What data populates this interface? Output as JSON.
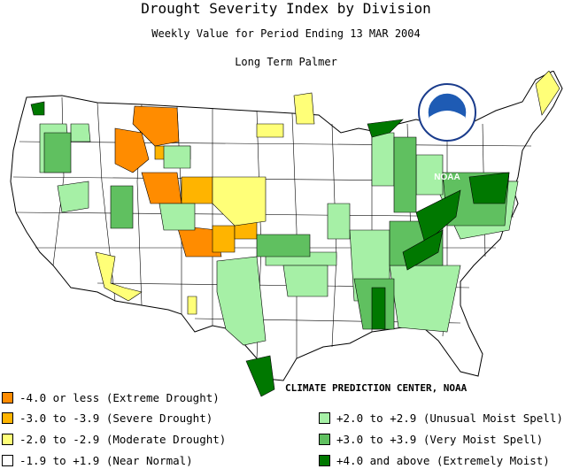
{
  "title": "Drought Severity Index by Division",
  "subtitle": "Weekly Value for Period Ending 13 MAR 2004",
  "index_name": "Long Term Palmer",
  "logo_text": "NOAA",
  "credit": "CLIMATE PREDICTION CENTER, NOAA",
  "colors": {
    "extreme_drought": "#ff8c00",
    "severe_drought": "#ffb400",
    "moderate_drought": "#ffff78",
    "near_normal": "#ffffff",
    "unusual_moist": "#a6f0a6",
    "very_moist": "#60c060",
    "extremely_moist": "#007800"
  },
  "legend": {
    "left": [
      {
        "label": "-4.0 or less (Extreme Drought)",
        "color": "#ff8c00"
      },
      {
        "label": "-3.0 to -3.9 (Severe Drought)",
        "color": "#ffb400"
      },
      {
        "label": "-2.0 to -2.9 (Moderate Drought)",
        "color": "#ffff78"
      },
      {
        "label": "-1.9 to +1.9 (Near Normal)",
        "color": "#ffffff"
      }
    ],
    "right": [
      {
        "label": "+2.0 to +2.9 (Unusual Moist Spell)",
        "color": "#a6f0a6"
      },
      {
        "label": "+3.0 to +3.9 (Very Moist Spell)",
        "color": "#60c060"
      },
      {
        "label": "+4.0 and above (Extremely Moist)",
        "color": "#007800"
      }
    ]
  }
}
